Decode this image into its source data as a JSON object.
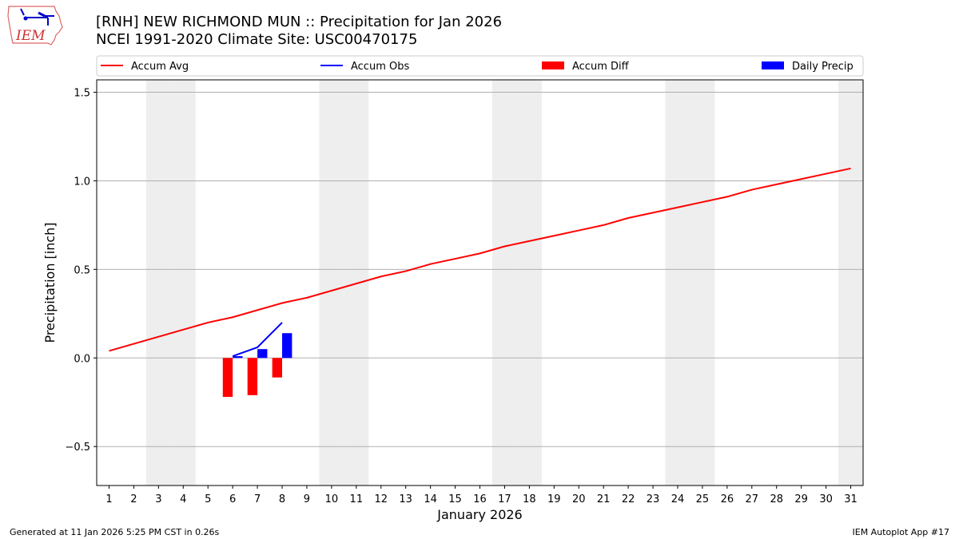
{
  "title_line1": "[RNH] NEW RICHMOND MUN :: Precipitation for Jan 2026",
  "title_line2": "NCEI 1991-2020 Climate Site: USC00470175",
  "logo_text": "IEM",
  "footer_left": "Generated at 11 Jan 2026 5:25 PM CST in 0.26s",
  "footer_right": "IEM Autoplot App #17",
  "chart_data": {
    "type": "bar+line",
    "xlabel": "January 2026",
    "ylabel": "Precipitation [inch]",
    "xlim": [
      0.5,
      31.5
    ],
    "ylim": [
      -0.72,
      1.57
    ],
    "yticks": [
      -0.5,
      0.0,
      0.5,
      1.0,
      1.5
    ],
    "ytick_labels": [
      "−0.5",
      "0.0",
      "0.5",
      "1.0",
      "1.5"
    ],
    "x": [
      1,
      2,
      3,
      4,
      5,
      6,
      7,
      8,
      9,
      10,
      11,
      12,
      13,
      14,
      15,
      16,
      17,
      18,
      19,
      20,
      21,
      22,
      23,
      24,
      25,
      26,
      27,
      28,
      29,
      30,
      31
    ],
    "grid": "horizontal",
    "legend_placement": "top",
    "weekend_days": [
      3,
      4,
      10,
      11,
      17,
      18,
      24,
      25,
      31
    ],
    "weekend_color": "#eeeeee",
    "series": [
      {
        "name": "Accum Avg",
        "kind": "line",
        "color": "#ff0000",
        "x": [
          1,
          2,
          3,
          4,
          5,
          6,
          7,
          8,
          9,
          10,
          11,
          12,
          13,
          14,
          15,
          16,
          17,
          18,
          19,
          20,
          21,
          22,
          23,
          24,
          25,
          26,
          27,
          28,
          29,
          30,
          31
        ],
        "values": [
          0.04,
          0.08,
          0.12,
          0.16,
          0.2,
          0.23,
          0.27,
          0.31,
          0.34,
          0.38,
          0.42,
          0.46,
          0.49,
          0.53,
          0.56,
          0.59,
          0.63,
          0.66,
          0.69,
          0.72,
          0.75,
          0.79,
          0.82,
          0.85,
          0.88,
          0.91,
          0.95,
          0.98,
          1.01,
          1.04,
          1.07
        ]
      },
      {
        "name": "Accum Obs",
        "kind": "line",
        "color": "#0000ff",
        "x": [
          6,
          7,
          8
        ],
        "values": [
          0.01,
          0.06,
          0.2
        ]
      },
      {
        "name": "Accum Diff",
        "kind": "bar",
        "color": "#ff0000",
        "align": "left",
        "x": [
          6,
          7,
          8
        ],
        "values": [
          -0.22,
          -0.21,
          -0.11
        ]
      },
      {
        "name": "Daily Precip",
        "kind": "bar",
        "color": "#0000ff",
        "align": "right",
        "x": [
          6,
          7,
          8
        ],
        "values": [
          0.01,
          0.05,
          0.14
        ]
      }
    ]
  }
}
